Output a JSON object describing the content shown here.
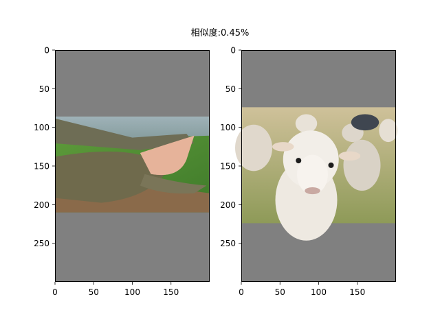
{
  "figure": {
    "suptitle": "相似度:0.45%"
  },
  "chart_data": [
    {
      "type": "image",
      "panel": "left",
      "image": "crocodile",
      "xlim": [
        0,
        200
      ],
      "ylim": [
        300,
        0
      ],
      "xticks": [
        0,
        50,
        100,
        150
      ],
      "yticks": [
        0,
        50,
        100,
        150,
        200,
        250
      ],
      "image_extent_y": [
        86,
        210
      ],
      "background_color": "#808080"
    },
    {
      "type": "image",
      "panel": "right",
      "image": "sheep",
      "xlim": [
        0,
        200
      ],
      "ylim": [
        300,
        0
      ],
      "xticks": [
        0,
        50,
        100,
        150
      ],
      "yticks": [
        0,
        50,
        100,
        150,
        200,
        250
      ],
      "image_extent_y": [
        74,
        224
      ],
      "background_color": "#808080"
    }
  ]
}
